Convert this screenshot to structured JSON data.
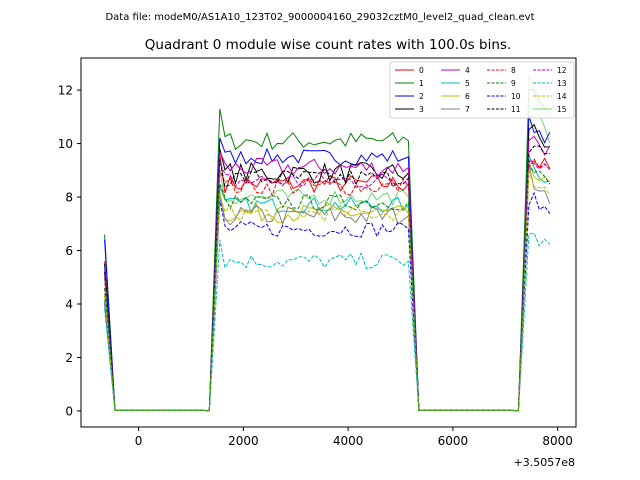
{
  "header_text": "Data file: modeM0/AS1A10_123T02_9000004160_29032cztM0_level2_quad_clean.evt",
  "chart_data": {
    "type": "line",
    "title": "Quadrant 0 module wise count rates with 100.0s bins.",
    "xlabel": "",
    "ylabel": "",
    "x_offset_label": "+3.5057e8",
    "xlim": [
      -1100,
      8350
    ],
    "ylim": [
      -0.6,
      13.2
    ],
    "xticks": [
      0,
      2000,
      4000,
      6000,
      8000
    ],
    "xtick_labels": [
      "0",
      "2000",
      "4000",
      "6000",
      "8000"
    ],
    "yticks": [
      0,
      2,
      4,
      6,
      8,
      10,
      12
    ],
    "ytick_labels": [
      "0",
      "2",
      "4",
      "6",
      "8",
      "10",
      "12"
    ],
    "grid": false,
    "legend_position": "top-right",
    "segments": [
      {
        "start": -650,
        "end": -450,
        "shape": "drop"
      },
      {
        "start": -450,
        "end": 1350,
        "shape": "zero"
      },
      {
        "start": 1350,
        "end": 1550,
        "shape": "rise"
      },
      {
        "start": 1550,
        "end": 5150,
        "shape": "plateau"
      },
      {
        "start": 5150,
        "end": 5350,
        "shape": "fall"
      },
      {
        "start": 5350,
        "end": 7250,
        "shape": "zero"
      },
      {
        "start": 7250,
        "end": 7450,
        "shape": "rise"
      },
      {
        "start": 7450,
        "end": 7950,
        "shape": "plateau2"
      }
    ],
    "series": [
      {
        "name": "0",
        "color": "#ff0000",
        "dash": "solid",
        "start": 5.6,
        "peak": 9.6,
        "level": 8.5,
        "amp": 0.35,
        "end_level": 9.5
      },
      {
        "name": "1",
        "color": "#008000",
        "dash": "solid",
        "start": 6.6,
        "peak": 11.3,
        "level": 10.1,
        "amp": 0.35,
        "end_level": 12.2
      },
      {
        "name": "2",
        "color": "#0000ff",
        "dash": "solid",
        "start": 6.4,
        "peak": 10.2,
        "level": 9.5,
        "amp": 0.3,
        "end_level": 10.8
      },
      {
        "name": "3",
        "color": "#000000",
        "dash": "solid",
        "start": 5.5,
        "peak": 9.8,
        "level": 8.9,
        "amp": 0.4,
        "end_level": 10.6
      },
      {
        "name": "4",
        "color": "#bf00bf",
        "dash": "solid",
        "start": 5.3,
        "peak": 9.7,
        "level": 9.1,
        "amp": 0.35,
        "end_level": 10.3
      },
      {
        "name": "5",
        "color": "#00bfbf",
        "dash": "solid",
        "start": 4.2,
        "peak": 8.4,
        "level": 7.7,
        "amp": 0.3,
        "end_level": 9.3
      },
      {
        "name": "6",
        "color": "#bfbf00",
        "dash": "solid",
        "start": 4.4,
        "peak": 8.2,
        "level": 7.4,
        "amp": 0.35,
        "end_level": 9.0
      },
      {
        "name": "7",
        "color": "#808080",
        "dash": "solid",
        "start": 4.0,
        "peak": 8.0,
        "level": 7.3,
        "amp": 0.4,
        "end_level": 8.9
      },
      {
        "name": "8",
        "color": "#ff0000",
        "dash": "dashed",
        "start": 5.0,
        "peak": 9.0,
        "level": 8.4,
        "amp": 0.35,
        "end_level": 9.4
      },
      {
        "name": "9",
        "color": "#008000",
        "dash": "dashed",
        "start": 4.6,
        "peak": 8.5,
        "level": 7.8,
        "amp": 0.3,
        "end_level": 9.1
      },
      {
        "name": "10",
        "color": "#0000ff",
        "dash": "dashed",
        "start": 4.1,
        "peak": 7.9,
        "level": 6.8,
        "amp": 0.3,
        "end_level": 8.0
      },
      {
        "name": "11",
        "color": "#000000",
        "dash": "dashed",
        "start": 5.2,
        "peak": 9.4,
        "level": 8.7,
        "amp": 0.35,
        "end_level": 10.0
      },
      {
        "name": "12",
        "color": "#bf00bf",
        "dash": "dashed",
        "start": 5.1,
        "peak": 9.3,
        "level": 8.6,
        "amp": 0.35,
        "end_level": 9.6
      },
      {
        "name": "13",
        "color": "#00bfbf",
        "dash": "dashed",
        "start": 3.8,
        "peak": 6.4,
        "level": 5.6,
        "amp": 0.3,
        "end_level": 6.6
      },
      {
        "name": "14",
        "color": "#bfbf00",
        "dash": "dashed",
        "start": 4.3,
        "peak": 8.1,
        "level": 7.4,
        "amp": 0.3,
        "end_level": 8.8
      },
      {
        "name": "15",
        "color": "#00b000",
        "dash": "solid",
        "start": 5.0,
        "peak": 9.0,
        "level": 8.0,
        "amp": 0.3,
        "end_level": 12.4,
        "alpha": 0.55
      }
    ]
  }
}
